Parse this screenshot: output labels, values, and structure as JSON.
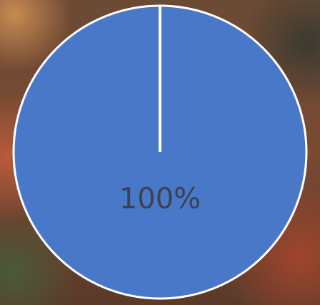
{
  "chart_data": {
    "type": "pie",
    "values": [
      100
    ],
    "value_labels": [
      "100%"
    ],
    "colors": [
      "#4a78c9"
    ],
    "label_color": "#3c4250"
  }
}
